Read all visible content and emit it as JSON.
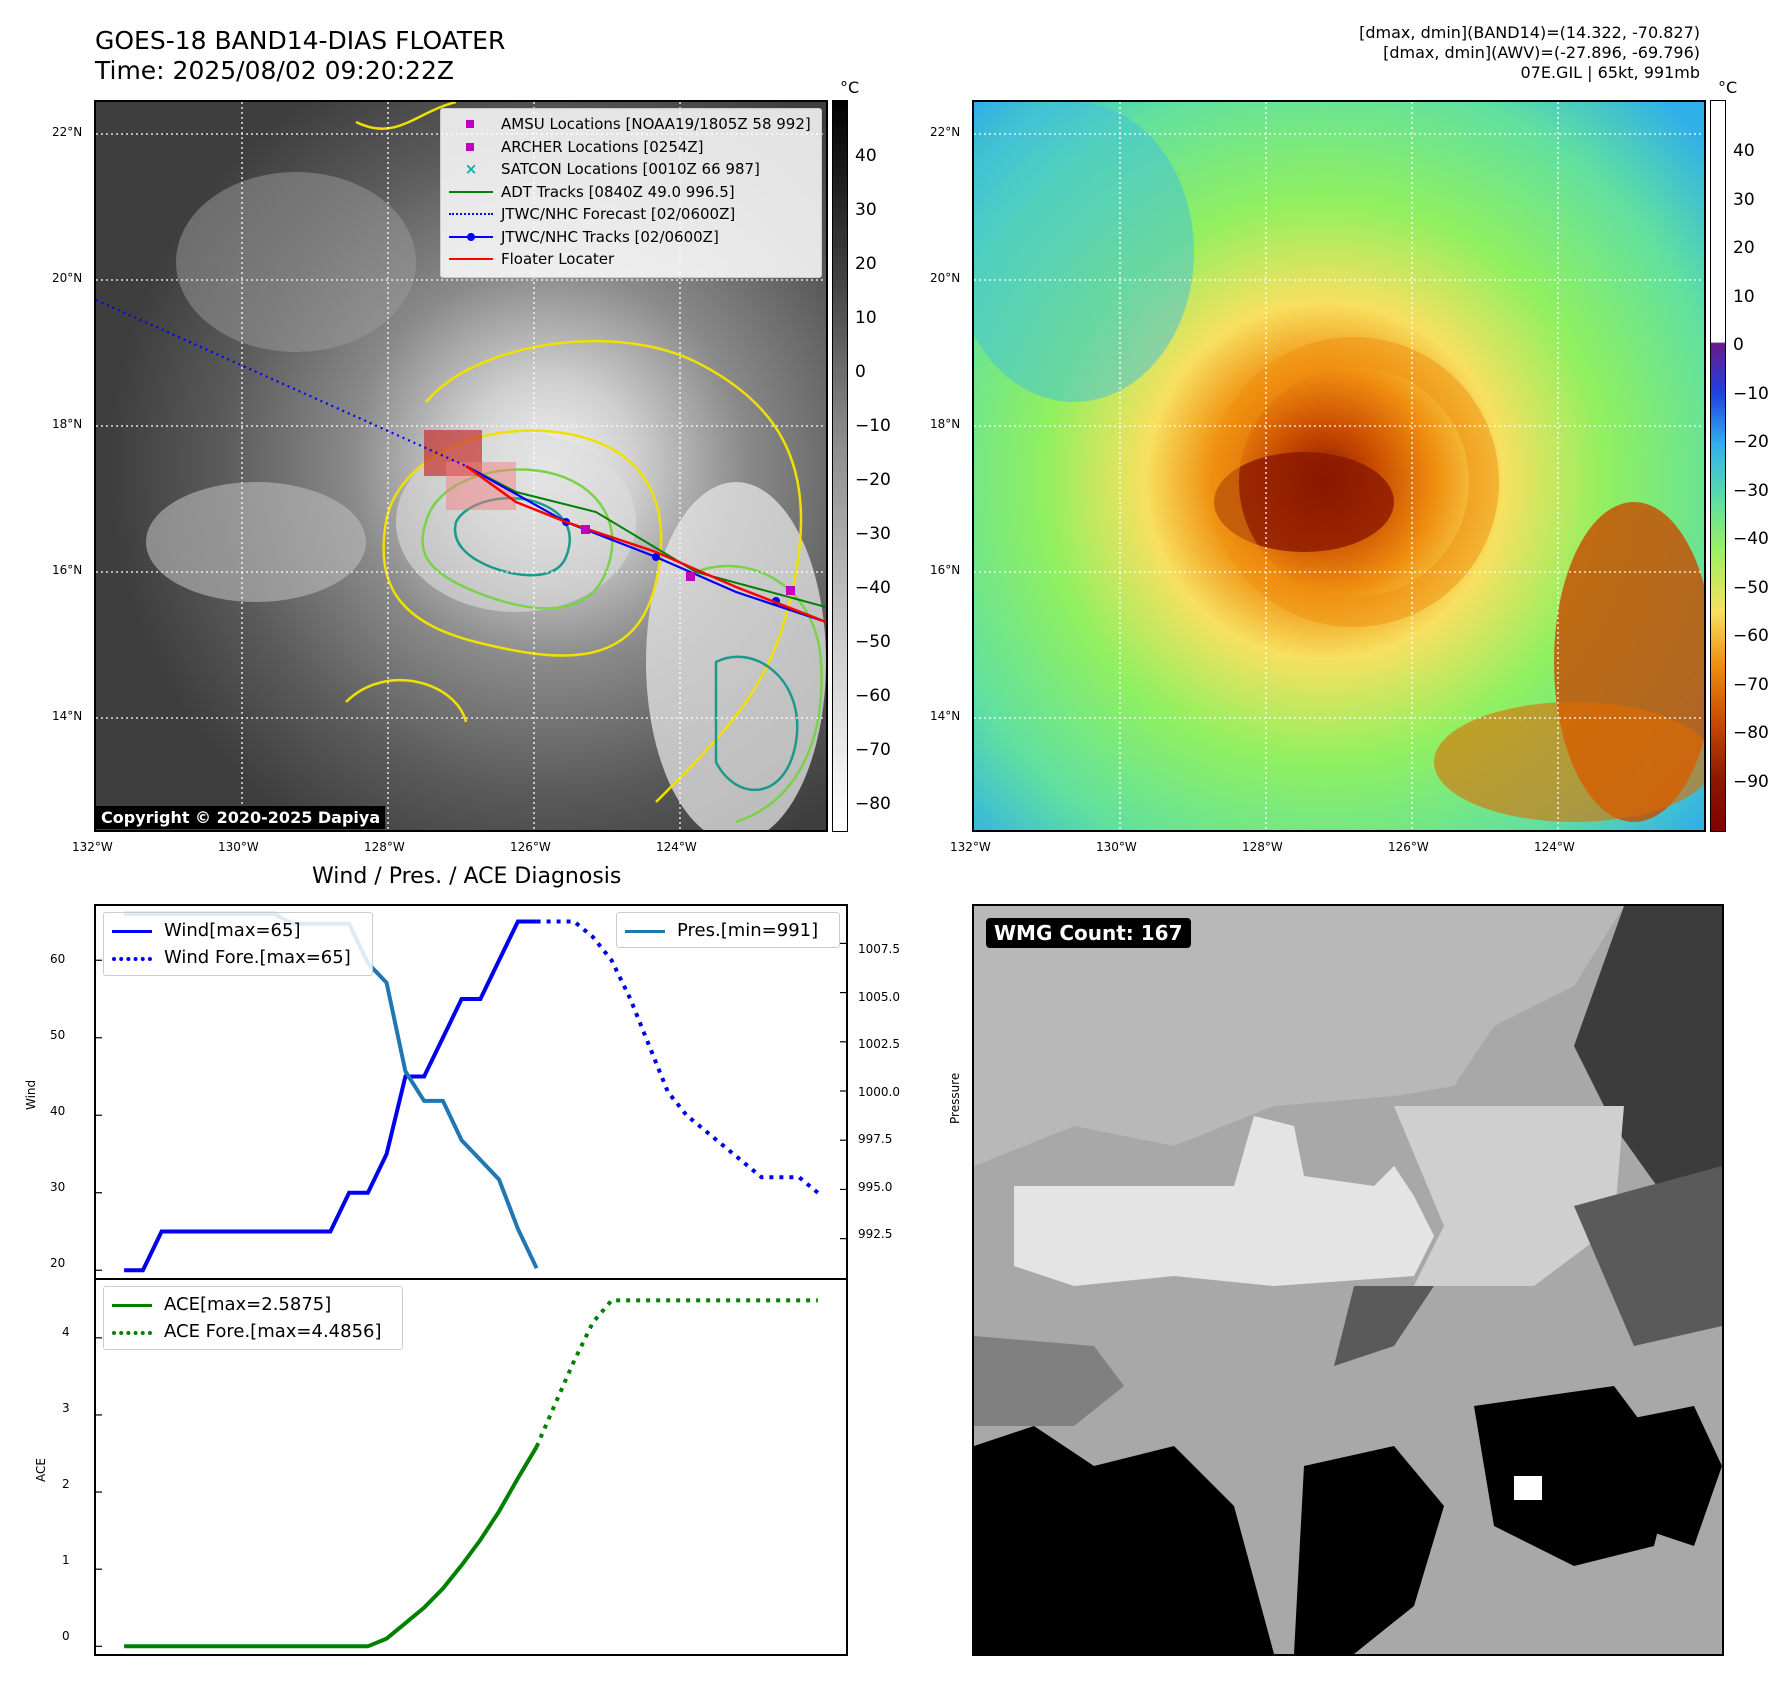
{
  "header": {
    "title_line1": "GOES-18 BAND14-DIAS FLOATER",
    "title_line2": "Time: 2025/08/02 09:20:22Z",
    "info_line1": "[dmax, dmin](BAND14)=(14.322, -70.827)",
    "info_line2": "[dmax, dmin](AWV)=(-27.896, -69.796)",
    "info_line3": "07E.GIL | 65kt, 991mb"
  },
  "maps": {
    "lon_ticks": [
      "132°W",
      "130°W",
      "128°W",
      "126°W",
      "124°W"
    ],
    "lat_ticks": [
      "22°N",
      "20°N",
      "18°N",
      "16°N",
      "14°N"
    ],
    "colorbar_unit": "°C",
    "left_colorbar_ticks": [
      "40",
      "30",
      "20",
      "10",
      "0",
      "−10",
      "−20",
      "−30",
      "−40",
      "−50",
      "−60",
      "−70",
      "−80"
    ],
    "right_colorbar_ticks": [
      "40",
      "30",
      "20",
      "10",
      "0",
      "−10",
      "−20",
      "−30",
      "−40",
      "−50",
      "−60",
      "−70",
      "−80",
      "−90"
    ],
    "copyright": "Copyright © 2020-2025 Dapiya",
    "legend": [
      {
        "label": "AMSU Locations [NOAA19/1805Z 58 992]",
        "color": "#c000c0",
        "kind": "square"
      },
      {
        "label": "ARCHER Locations [0254Z]",
        "color": "#c000c0",
        "kind": "square"
      },
      {
        "label": "SATCON Locations [0010Z 66 987]",
        "color": "#00b0b0",
        "kind": "x"
      },
      {
        "label": "ADT Tracks [0840Z 49.0 996.5]",
        "color": "#008000",
        "kind": "line"
      },
      {
        "label": "JTWC/NHC Forecast [02/0600Z]",
        "color": "#0000ff",
        "kind": "dotted"
      },
      {
        "label": "JTWC/NHC Tracks [02/0600Z]",
        "color": "#0000ff",
        "kind": "line-dot"
      },
      {
        "label": "Floater Locater",
        "color": "#ff0000",
        "kind": "line"
      }
    ]
  },
  "diagnosis": {
    "title": "Wind / Pres. / ACE Diagnosis",
    "wind_ylabel": "Wind",
    "pres_ylabel": "Pressure",
    "ace_ylabel": "ACE",
    "wind_ticks": [
      "60",
      "50",
      "40",
      "30",
      "20"
    ],
    "pres_ticks": [
      "1007.5",
      "1005.0",
      "1002.5",
      "1000.0",
      "997.5",
      "995.0",
      "992.5"
    ],
    "ace_ticks": [
      "4",
      "3",
      "2",
      "1",
      "0"
    ],
    "legend_wind": "Wind[max=65]",
    "legend_wind_fore": "Wind Fore.[max=65]",
    "legend_pres": "Pres.[min=991]",
    "legend_ace": "ACE[max=2.5875]",
    "legend_ace_fore": "ACE Fore.[max=4.4856]"
  },
  "wmg": {
    "label": "WMG Count: 167"
  },
  "colors": {
    "wind": "#0000ee",
    "pressure": "#1f77b4",
    "ace": "#008000"
  },
  "chart_data": [
    {
      "type": "line",
      "title": "Wind / Pres. / ACE Diagnosis",
      "xlabel": "",
      "ylabel": "Wind",
      "ylim": [
        19,
        67
      ],
      "x": [
        0,
        1,
        2,
        3,
        4,
        5,
        6,
        7,
        8,
        9,
        10,
        11,
        12,
        13,
        14,
        15,
        16,
        17,
        18,
        19,
        20,
        21,
        22
      ],
      "series": [
        {
          "name": "Wind[max=65]",
          "values": [
            20,
            20,
            25,
            25,
            25,
            25,
            25,
            25,
            25,
            25,
            25,
            25,
            30,
            30,
            35,
            45,
            45,
            50,
            55,
            55,
            60,
            65,
            65
          ]
        },
        {
          "name": "Wind Fore.[max=65]",
          "x": [
            22,
            23,
            24,
            25,
            26,
            27,
            28,
            29,
            30,
            31,
            32,
            33,
            34,
            35,
            36,
            37
          ],
          "values": [
            65,
            65,
            65,
            63,
            60,
            55,
            49,
            43,
            40,
            38,
            36,
            34,
            32,
            32,
            32,
            30
          ]
        }
      ]
    },
    {
      "type": "line",
      "xlabel": "",
      "ylabel": "Pressure",
      "ylim": [
        990.5,
        1009.4
      ],
      "x": [
        0,
        1,
        2,
        3,
        4,
        5,
        6,
        7,
        8,
        9,
        10,
        11,
        12,
        13,
        14,
        15,
        16,
        17,
        18,
        19,
        20,
        21,
        22
      ],
      "series": [
        {
          "name": "Pres.[min=991]",
          "values": [
            1009,
            1009,
            1009,
            1009,
            1009,
            1009,
            1009,
            1009,
            1009,
            1008.5,
            1008.5,
            1008.5,
            1008.5,
            1006.5,
            1005.5,
            1001,
            999.5,
            999.5,
            997.5,
            996.5,
            995.5,
            993,
            991
          ]
        }
      ]
    },
    {
      "type": "line",
      "xlabel": "",
      "ylabel": "ACE",
      "ylim": [
        -0.1,
        4.75
      ],
      "x": [
        0,
        1,
        2,
        3,
        4,
        5,
        6,
        7,
        8,
        9,
        10,
        11,
        12,
        13,
        14,
        15,
        16,
        17,
        18,
        19,
        20,
        21,
        22
      ],
      "series": [
        {
          "name": "ACE[max=2.5875]",
          "values": [
            0,
            0,
            0,
            0,
            0,
            0,
            0,
            0,
            0,
            0,
            0,
            0,
            0,
            0,
            0.1,
            0.3,
            0.5,
            0.75,
            1.05,
            1.38,
            1.75,
            2.18,
            2.5875
          ]
        },
        {
          "name": "ACE Fore.[max=4.4856]",
          "x": [
            22,
            23,
            24,
            25,
            26,
            27,
            28,
            29,
            30,
            31,
            32,
            33,
            34,
            35,
            36,
            37
          ],
          "values": [
            2.5875,
            3.15,
            3.7,
            4.2,
            4.4856,
            4.4856,
            4.4856,
            4.4856,
            4.4856,
            4.4856,
            4.4856,
            4.4856,
            4.4856,
            4.4856,
            4.4856,
            4.4856
          ]
        }
      ]
    }
  ]
}
